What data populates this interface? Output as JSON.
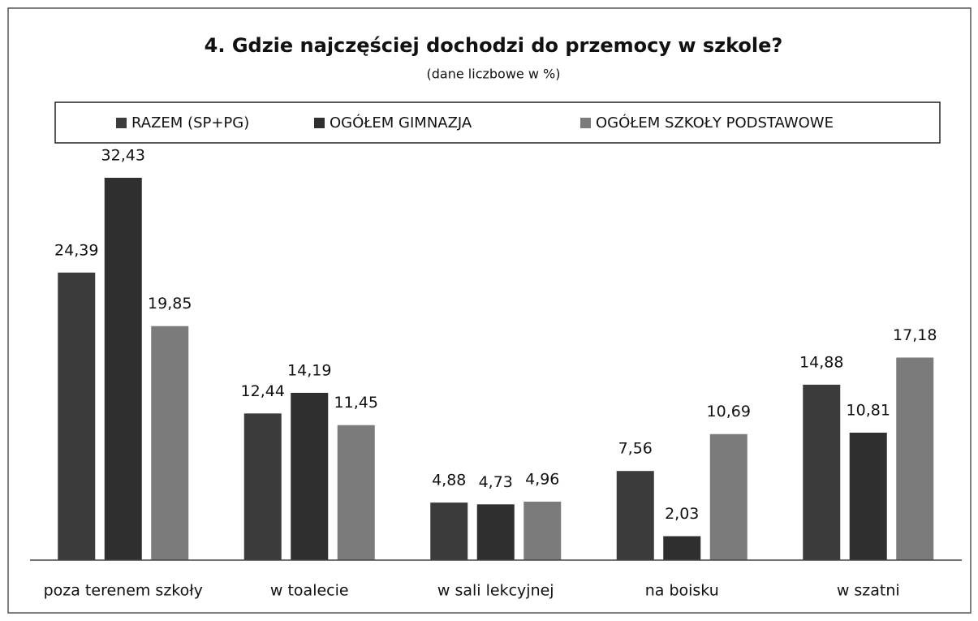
{
  "chart_data": {
    "type": "bar",
    "title": "4. Gdzie najczęściej dochodzi do przemocy w szkole?",
    "subtitle": "(dane liczbowe w %)",
    "categories": [
      "poza terenem szkoły",
      "w toalecie",
      "w sali lekcyjnej",
      "na boisku",
      "w szatni"
    ],
    "series": [
      {
        "name": "RAZEM (SP+PG)",
        "color": "#3b3b3b",
        "values": [
          24.39,
          12.44,
          4.88,
          7.56,
          14.88
        ],
        "value_labels": [
          "24,39",
          "12,44",
          "4,88",
          "7,56",
          "14,88"
        ]
      },
      {
        "name": "OGÓŁEM GIMNAZJA",
        "color": "#2f2f2f",
        "values": [
          32.43,
          14.19,
          4.73,
          2.03,
          10.81
        ],
        "value_labels": [
          "32,43",
          "14,19",
          "4,73",
          "2,03",
          "10,81"
        ]
      },
      {
        "name": "OGÓŁEM SZKOŁY PODSTAWOWE",
        "color": "#7b7b7b",
        "values": [
          19.85,
          11.45,
          4.96,
          10.69,
          17.18
        ],
        "value_labels": [
          "19,85",
          "11,45",
          "4,96",
          "10,69",
          "17,18"
        ]
      }
    ],
    "legend": "top"
  }
}
